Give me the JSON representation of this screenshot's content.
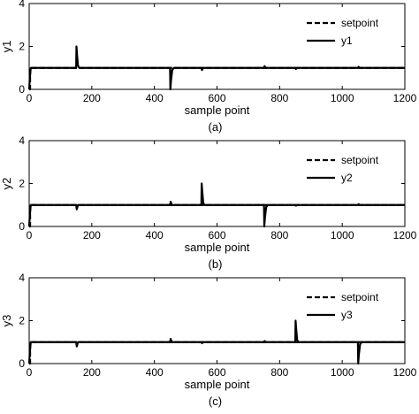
{
  "chart_data": [
    {
      "type": "line",
      "caption": "(a)",
      "xlabel": "sample point",
      "ylabel": "y1",
      "xlim": [
        0,
        1200
      ],
      "ylim": [
        0,
        4
      ],
      "xticks": [
        0,
        200,
        400,
        600,
        800,
        1000,
        1200
      ],
      "yticks": [
        0,
        2,
        4
      ],
      "grid": false,
      "legend_position": "top-right",
      "series": [
        {
          "name": "setpoint",
          "style": "dashed",
          "color": "#000000",
          "x": [
            0,
            3,
            3,
            1200
          ],
          "y": [
            0,
            0,
            1,
            1
          ]
        },
        {
          "name": "y1",
          "style": "solid",
          "color": "#000000",
          "x": [
            0,
            2,
            5,
            10,
            150,
            151,
            153,
            156,
            160,
            450,
            451,
            453,
            457,
            462,
            550,
            552,
            556,
            750,
            752,
            756,
            850,
            852,
            856,
            1050,
            1052,
            1056,
            1200
          ],
          "y": [
            0,
            0.5,
            1,
            1,
            1,
            2.0,
            1.6,
            1.1,
            1,
            1,
            0,
            0.4,
            0.9,
            1,
            1,
            0.9,
            1,
            1,
            1.08,
            1,
            1,
            0.95,
            1,
            1,
            1.05,
            1,
            1
          ]
        }
      ]
    },
    {
      "type": "line",
      "caption": "(b)",
      "xlabel": "sample point",
      "ylabel": "y2",
      "xlim": [
        0,
        1200
      ],
      "ylim": [
        0,
        4
      ],
      "xticks": [
        0,
        200,
        400,
        600,
        800,
        1000,
        1200
      ],
      "yticks": [
        0,
        2,
        4
      ],
      "grid": false,
      "legend_position": "top-right",
      "series": [
        {
          "name": "setpoint",
          "style": "dashed",
          "color": "#000000",
          "x": [
            0,
            3,
            3,
            1200
          ],
          "y": [
            0,
            0,
            1,
            1
          ]
        },
        {
          "name": "y2",
          "style": "solid",
          "color": "#000000",
          "x": [
            0,
            2,
            5,
            10,
            150,
            152,
            156,
            450,
            452,
            456,
            550,
            551,
            553,
            556,
            560,
            750,
            751,
            753,
            757,
            762,
            850,
            852,
            856,
            1050,
            1052,
            1056,
            1200
          ],
          "y": [
            0,
            0.5,
            1,
            1,
            1,
            0.8,
            1,
            1,
            1.15,
            1,
            1,
            2.0,
            1.6,
            1.1,
            1,
            1,
            0,
            0.4,
            0.9,
            1,
            1,
            0.97,
            1,
            1,
            1.04,
            1,
            1
          ]
        }
      ]
    },
    {
      "type": "line",
      "caption": "(c)",
      "xlabel": "sample point",
      "ylabel": "y3",
      "xlim": [
        0,
        1200
      ],
      "ylim": [
        0,
        4
      ],
      "xticks": [
        0,
        200,
        400,
        600,
        800,
        1000,
        1200
      ],
      "yticks": [
        0,
        2,
        4
      ],
      "grid": false,
      "legend_position": "top-right",
      "series": [
        {
          "name": "setpoint",
          "style": "dashed",
          "color": "#000000",
          "x": [
            0,
            3,
            3,
            1200
          ],
          "y": [
            0,
            0,
            1,
            1
          ]
        },
        {
          "name": "y3",
          "style": "solid",
          "color": "#000000",
          "x": [
            0,
            2,
            5,
            10,
            150,
            152,
            156,
            450,
            452,
            456,
            550,
            552,
            556,
            750,
            752,
            756,
            850,
            851,
            853,
            856,
            860,
            1050,
            1051,
            1053,
            1057,
            1062,
            1200
          ],
          "y": [
            0,
            0.5,
            1,
            1,
            1,
            0.8,
            1,
            1,
            1.15,
            1,
            1,
            0.95,
            1,
            1,
            1.05,
            1,
            1,
            2.0,
            1.6,
            1.1,
            1,
            1,
            0,
            0.4,
            0.9,
            1,
            1
          ]
        }
      ]
    }
  ]
}
